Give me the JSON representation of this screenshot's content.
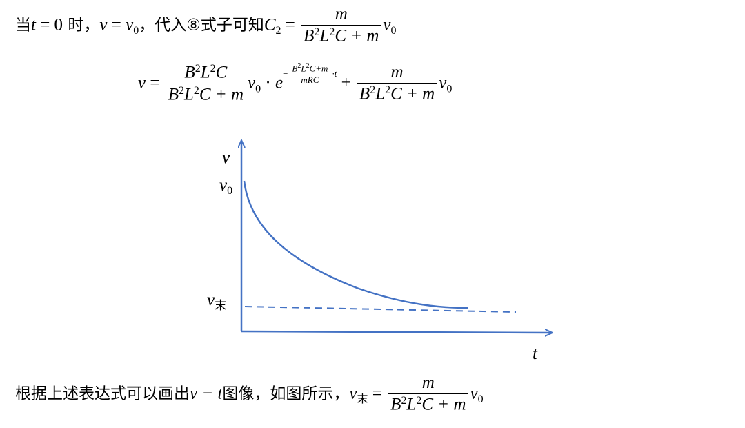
{
  "line1": {
    "lead": "当",
    "t": "t",
    "cond": " = 0",
    "when": " 时，",
    "v": "v",
    "eq": " = ",
    "v0": "v",
    "v0_sub": "0",
    "mid": "，代入⑧式子可知",
    "c": "C",
    "c_sub": "2",
    "equals": " = ",
    "num": "m",
    "den": {
      "b": "B",
      "e1": "2",
      "l": "L",
      "e2": "2",
      "rest": "C + m"
    },
    "tail": "v",
    "tail_sub": "0"
  },
  "line2": {
    "lhs": "v",
    "equals": " = ",
    "f1_num": {
      "b": "B",
      "e1": "2",
      "l": "L",
      "e2": "2",
      "rest": "C"
    },
    "f1_den": {
      "b": "B",
      "e1": "2",
      "l": "L",
      "e2": "2",
      "rest": "C + m"
    },
    "v": "v",
    "v_sub": "0",
    "dot": " · ",
    "e": "e",
    "exp_sign": "−",
    "exp_num": {
      "b": "B",
      "e1": "2",
      "l": "L",
      "e2": "2",
      "rest": "C+m"
    },
    "exp_den": "mRC",
    "exp_t": "·t",
    "plus": " + ",
    "f2_num": "m",
    "f2_den": {
      "b": "B",
      "e1": "2",
      "l": "L",
      "e2": "2",
      "rest": "C + m"
    },
    "v2": "v",
    "v2_sub": "0"
  },
  "diagram": {
    "y_label": "v",
    "v0": "v",
    "v0_sub": "0",
    "vend": "v",
    "vend_sub": "末",
    "x_label": "t"
  },
  "line3": {
    "lead": "根据上述表达式可以画出",
    "vt": "v − t",
    "mid": "图像，如图所示，",
    "v": "v",
    "v_sub": "末",
    "equals": " = ",
    "num": "m",
    "den": {
      "b": "B",
      "e1": "2",
      "l": "L",
      "e2": "2",
      "rest": "C + m"
    },
    "tail": "v",
    "tail_sub": "0"
  }
}
